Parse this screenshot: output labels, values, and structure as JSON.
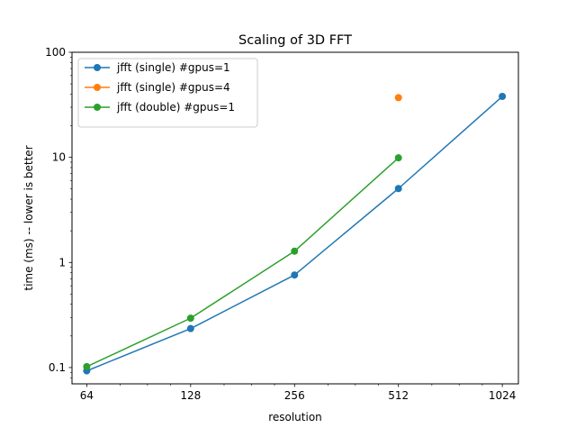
{
  "chart_data": {
    "type": "line",
    "title": "Scaling of 3D FFT",
    "xlabel": "resolution",
    "ylabel": "time (ms) --  lower is better",
    "xscale": "log2",
    "yscale": "log10",
    "xlim": [
      58,
      1140
    ],
    "ylim": [
      0.07,
      100
    ],
    "xticks": [
      {
        "value": 64,
        "label": "64"
      },
      {
        "value": 128,
        "label": "128"
      },
      {
        "value": 256,
        "label": "256"
      },
      {
        "value": 512,
        "label": "512"
      },
      {
        "value": 1024,
        "label": "1024"
      }
    ],
    "yticks": [
      {
        "value": 0.1,
        "label": "0.1"
      },
      {
        "value": 1,
        "label": "1"
      },
      {
        "value": 10,
        "label": "10"
      },
      {
        "value": 100,
        "label": "100"
      }
    ],
    "grid": false,
    "legend_position": "top-left",
    "series": [
      {
        "name": "jfft (single) #gpus=1",
        "color": "#1f77b4",
        "x": [
          64,
          128,
          256,
          512,
          1024
        ],
        "y": [
          0.093,
          0.235,
          0.76,
          5.05,
          38
        ]
      },
      {
        "name": "jfft (single) #gpus=4",
        "color": "#ff7f0e",
        "x": [
          512
        ],
        "y": [
          37
        ]
      },
      {
        "name": "jfft (double) #gpus=1",
        "color": "#2ca02c",
        "x": [
          64,
          128,
          256,
          512
        ],
        "y": [
          0.102,
          0.295,
          1.28,
          9.9
        ]
      }
    ]
  }
}
